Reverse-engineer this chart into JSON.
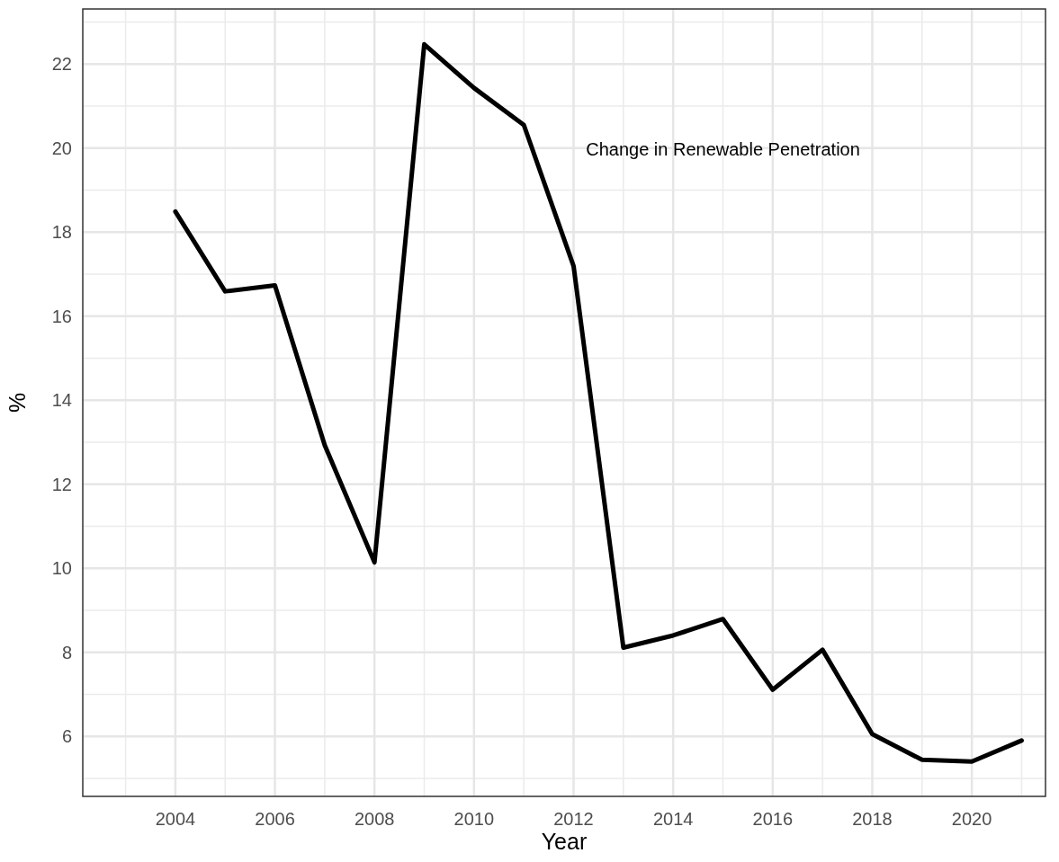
{
  "chart_data": {
    "type": "line",
    "xlabel": "Year",
    "ylabel": "%",
    "x": [
      2004,
      2005,
      2006,
      2007,
      2008,
      2009,
      2010,
      2011,
      2012,
      2013,
      2014,
      2015,
      2016,
      2017,
      2018,
      2019,
      2020,
      2021
    ],
    "series": [
      {
        "color": "#000000",
        "values": [
          18.49,
          16.59,
          16.73,
          12.93,
          10.14,
          22.47,
          21.43,
          20.55,
          17.19,
          8.11,
          8.4,
          8.79,
          7.11,
          8.06,
          6.05,
          5.44,
          5.4,
          5.9
        ]
      }
    ],
    "xlim": [
      2002.14,
      2021.48
    ],
    "ylim": [
      4.57,
      23.31
    ],
    "xticks": [
      2004,
      2006,
      2008,
      2010,
      2012,
      2014,
      2016,
      2018,
      2020
    ],
    "yticks": [
      6,
      8,
      10,
      12,
      14,
      16,
      18,
      20,
      22
    ],
    "grid": true,
    "annotations": [
      "Change in Renewable Penetration"
    ]
  }
}
